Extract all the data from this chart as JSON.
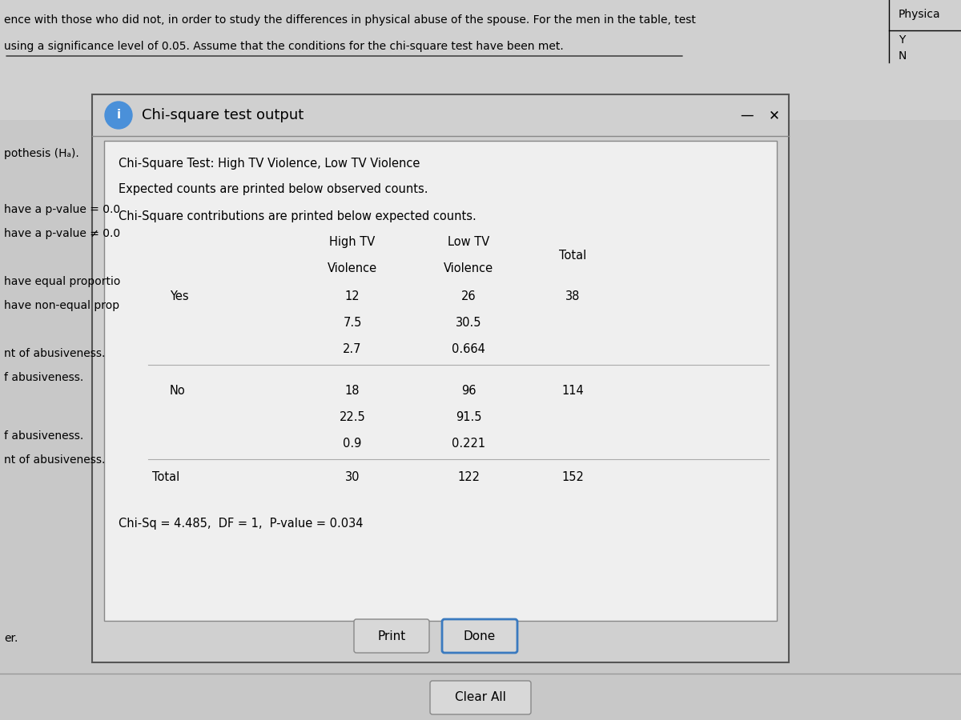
{
  "bg_color": "#c8c8c8",
  "header_text": "ence with those who did not, in order to study the differences in physical abuse of the spouse. For the men in the table, test",
  "header_text2": "using a significance level of 0.05. Assume that the conditions for the chi-square test have been met.",
  "right_label_title": "Physica",
  "right_label_y": "Y",
  "right_label_n": "N",
  "dialog_title": "Chi-square test output",
  "table_title1": "Chi-Square Test: High TV Violence, Low TV Violence",
  "table_title2": "Expected counts are printed below observed counts.",
  "table_title3": "Chi-Square contributions are printed below expected counts.",
  "row_yes": "Yes",
  "row_no": "No",
  "row_total": "Total",
  "yes_high_obs": "12",
  "yes_high_exp": "7.5",
  "yes_high_chi": "2.7",
  "yes_low_obs": "26",
  "yes_low_exp": "30.5",
  "yes_low_chi": "0.664",
  "yes_total": "38",
  "no_high_obs": "18",
  "no_high_exp": "22.5",
  "no_high_chi": "0.9",
  "no_low_obs": "96",
  "no_low_exp": "91.5",
  "no_low_chi": "0.221",
  "no_total": "114",
  "total_high": "30",
  "total_low": "122",
  "total_total": "152",
  "chi_sq_line": "Chi-Sq = 4.485,  DF = 1,  P-value = 0.034",
  "print_btn": "Print",
  "done_btn": "Done",
  "clear_btn": "Clear All"
}
